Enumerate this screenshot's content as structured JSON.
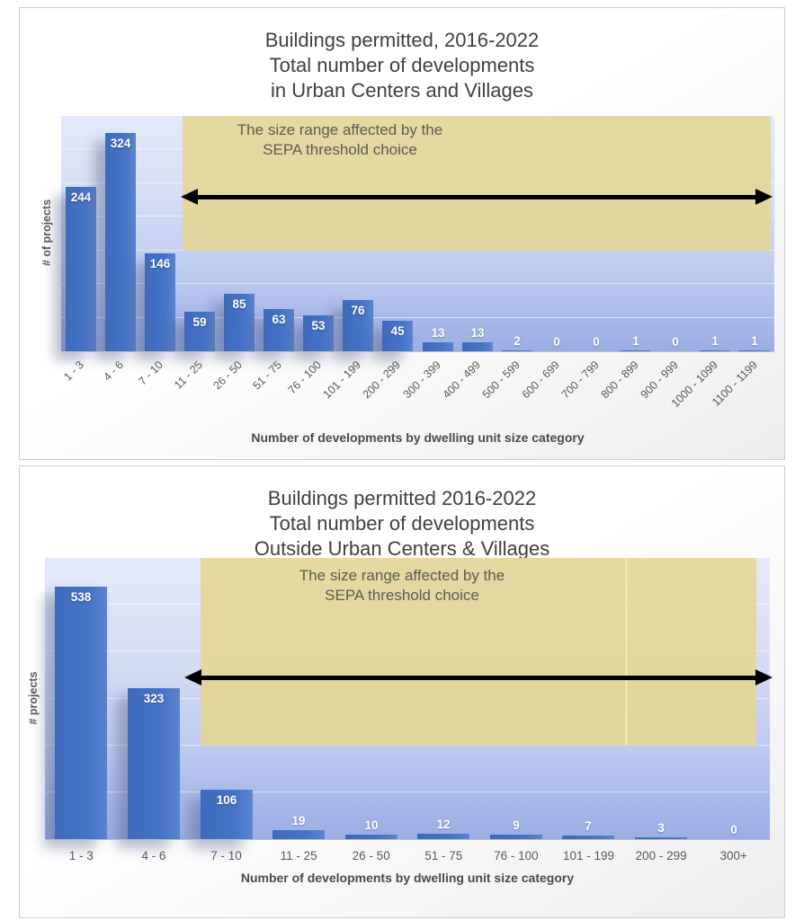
{
  "page": {
    "background": "#ffffff"
  },
  "chart_data": [
    {
      "type": "bar",
      "title_lines": [
        "Buildings permitted, 2016-2022",
        "Total number of developments",
        "in Urban Centers and Villages"
      ],
      "title": "Buildings permitted, 2016-2022 — Total number of developments in Urban Centers and Villages",
      "xlabel": "Number of developments by dwelling unit size category",
      "ylabel": "# of projects",
      "categories": [
        "1 - 3",
        "4 - 6",
        "7 - 10",
        "11 - 25",
        "26 - 50",
        "51 - 75",
        "76 - 100",
        "101 - 199",
        "200 - 299",
        "300 - 399",
        "400 - 499",
        "500 - 599",
        "600 - 699",
        "700 - 799",
        "800 - 899",
        "900 - 999",
        "1000 - 1099",
        "1100 - 1199"
      ],
      "values": [
        244,
        324,
        146,
        59,
        85,
        63,
        53,
        76,
        45,
        13,
        13,
        2,
        0,
        0,
        1,
        0,
        1,
        1
      ],
      "ylim": [
        0,
        350
      ],
      "gridline_step": 50,
      "grid": true,
      "legend": "none",
      "tick_style": "rotated-45",
      "annotation": {
        "line1": "The size range affected by the",
        "line2": "SEPA threshold choice",
        "arrow": "black double-headed horizontal arrow across highlighted range",
        "covers_categories_from": "11 - 25",
        "covers_categories_to": "1100 - 1199"
      },
      "colors": {
        "bar": "#4472C4",
        "bar_label": "#FFFFFF",
        "plot_top": "#E4EAF9",
        "plot_bottom": "#9BAEE4",
        "overlay": "#E5D593",
        "arrow": "#000000",
        "title": "#404040",
        "axis_text": "#595959"
      }
    },
    {
      "type": "bar",
      "title_lines": [
        "Buildings permitted 2016-2022",
        "Total number of developments",
        "Outside Urban Centers & Villages"
      ],
      "title": "Buildings permitted 2016-2022 — Total number of developments Outside Urban Centers & Villages",
      "xlabel": "Number of developments by dwelling unit size category",
      "ylabel": "# projects",
      "categories": [
        "1 - 3",
        "4 - 6",
        "7 - 10",
        "11 - 25",
        "26 - 50",
        "51 - 75",
        "76 - 100",
        "101 - 199",
        "200 - 299",
        "300+"
      ],
      "values": [
        538,
        323,
        106,
        19,
        10,
        12,
        9,
        7,
        3,
        0
      ],
      "ylim": [
        0,
        600
      ],
      "gridline_step": 100,
      "grid": true,
      "legend": "none",
      "tick_style": "horizontal",
      "annotation": {
        "line1": "The size range affected by the",
        "line2": "SEPA threshold choice",
        "arrow": "black double-headed horizontal arrow across highlighted range",
        "covers_categories_from": "7 - 10",
        "covers_categories_to": "300+"
      },
      "colors": {
        "bar": "#4472C4",
        "bar_label": "#FFFFFF",
        "plot_top": "#E4EAF9",
        "plot_bottom": "#9BAEE4",
        "overlay": "#E5D593",
        "arrow": "#000000",
        "title": "#404040",
        "axis_text": "#595959"
      }
    }
  ]
}
